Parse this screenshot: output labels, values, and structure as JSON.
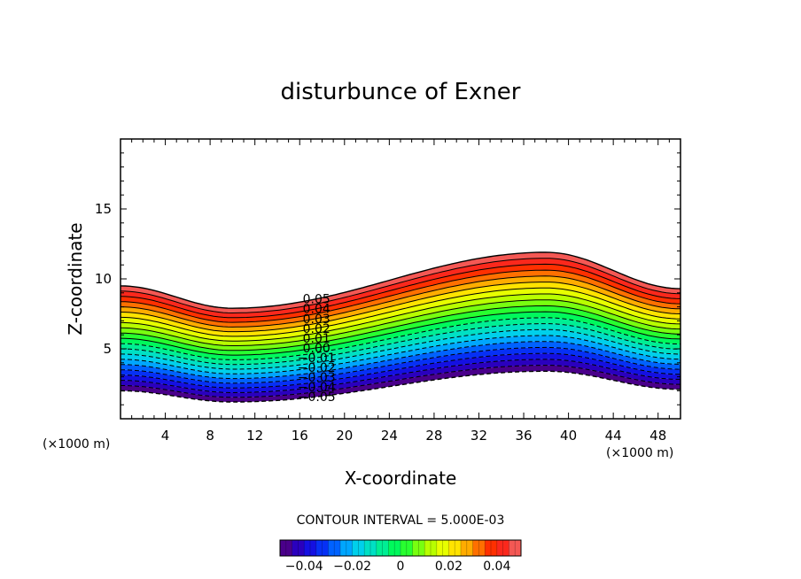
{
  "chart_data": {
    "type": "contour",
    "title": "disturbunce of Exner",
    "xlabel": "X-coordinate",
    "ylabel": "Z-coordinate",
    "x_unit": "(×1000 m)",
    "y_unit": "(×1000 m)",
    "xlim": [
      0,
      50
    ],
    "ylim": [
      0,
      20
    ],
    "x_ticks": [
      4,
      8,
      12,
      16,
      20,
      24,
      28,
      32,
      36,
      40,
      44,
      48
    ],
    "x_tick_labels": [
      "4",
      "8",
      "12",
      "16",
      "20",
      "24",
      "28",
      "32",
      "36",
      "40",
      "44",
      "48"
    ],
    "y_ticks": [
      5,
      10,
      15
    ],
    "y_tick_labels": [
      "5",
      "10",
      "15"
    ],
    "contour_interval_label": "CONTOUR INTERVAL = 5.000E-03",
    "contour_interval": 0.005,
    "value_range": [
      -0.05,
      0.05
    ],
    "colorbar_ticks": [
      -0.04,
      -0.02,
      0,
      0.02,
      0.04
    ],
    "colorbar_tick_labels": [
      "−0.04",
      "−0.02",
      "0",
      "0.02",
      "0.04"
    ],
    "contour_labels": [
      "0.05",
      "0.04",
      "0.03",
      "0.02",
      "0.01",
      "0.00",
      "−0.01",
      "−0.02",
      "−0.03",
      "−0.04",
      "−0.05"
    ],
    "contour_label_values": [
      0.05,
      0.04,
      0.03,
      0.02,
      0.01,
      0.0,
      -0.01,
      -0.02,
      -0.03,
      -0.04,
      -0.05
    ],
    "field": {
      "description_units": "km",
      "top_boundary_z": {
        "x": [
          0,
          10,
          38,
          50
        ],
        "z": [
          9.5,
          7.9,
          11.9,
          9.3
        ]
      },
      "bottom_boundary_z": {
        "x": [
          0,
          10,
          38,
          50
        ],
        "z": [
          2.0,
          1.2,
          3.4,
          2.1
        ]
      },
      "negative_contours_dashed": true
    },
    "colormap": [
      "#5a0070",
      "#1a00d8",
      "#0040ff",
      "#00c8ff",
      "#00e8b0",
      "#00ff40",
      "#a0ff00",
      "#ffff00",
      "#ff9000",
      "#ff1000",
      "#f07070"
    ]
  }
}
